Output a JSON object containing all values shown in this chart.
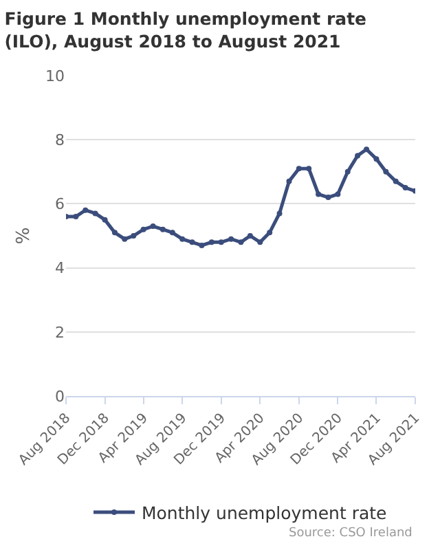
{
  "chart_data": {
    "type": "line",
    "title": "Figure 1 Monthly unemployment rate (ILO), August 2018 to August 2021",
    "ylabel": "%",
    "x": [
      "2018-08",
      "2018-09",
      "2018-10",
      "2018-11",
      "2018-12",
      "2019-01",
      "2019-02",
      "2019-03",
      "2019-04",
      "2019-05",
      "2019-06",
      "2019-07",
      "2019-08",
      "2019-09",
      "2019-10",
      "2019-11",
      "2019-12",
      "2020-01",
      "2020-02",
      "2020-03",
      "2020-04",
      "2020-05",
      "2020-06",
      "2020-07",
      "2020-08",
      "2020-09",
      "2020-10",
      "2020-11",
      "2020-12",
      "2021-01",
      "2021-02",
      "2021-03",
      "2021-04",
      "2021-05",
      "2021-06",
      "2021-07",
      "2021-08"
    ],
    "series": [
      {
        "name": "Monthly unemployment rate",
        "color": "#3b4d7c",
        "values": [
          5.6,
          5.6,
          5.8,
          5.7,
          5.5,
          5.1,
          4.9,
          5.0,
          5.2,
          5.3,
          5.2,
          5.1,
          4.9,
          4.8,
          4.7,
          4.8,
          4.8,
          4.9,
          4.8,
          5.0,
          4.8,
          5.1,
          5.7,
          6.7,
          7.1,
          7.1,
          6.3,
          6.2,
          6.3,
          7.0,
          7.5,
          7.7,
          7.4,
          7.0,
          6.7,
          6.5,
          6.4
        ]
      }
    ],
    "xlim": [
      "2018-08",
      "2021-08"
    ],
    "xticks": [
      {
        "value": "2018-08",
        "label": "Aug 2018"
      },
      {
        "value": "2018-12",
        "label": "Dec 2018"
      },
      {
        "value": "2019-04",
        "label": "Apr 2019"
      },
      {
        "value": "2019-08",
        "label": "Aug 2019"
      },
      {
        "value": "2019-12",
        "label": "Dec 2019"
      },
      {
        "value": "2020-04",
        "label": "Apr 2020"
      },
      {
        "value": "2020-08",
        "label": "Aug 2020"
      },
      {
        "value": "2020-12",
        "label": "Dec 2020"
      },
      {
        "value": "2021-04",
        "label": "Apr 2021"
      },
      {
        "value": "2021-08",
        "label": "Aug 2021"
      }
    ],
    "ylim": [
      0,
      10
    ],
    "yticks": [
      0,
      2,
      4,
      6,
      8,
      10
    ],
    "grid": "y",
    "legend": "bottom",
    "marker": "circle",
    "line_style": "solid",
    "annotations": [
      "Source: CSO Ireland"
    ]
  }
}
